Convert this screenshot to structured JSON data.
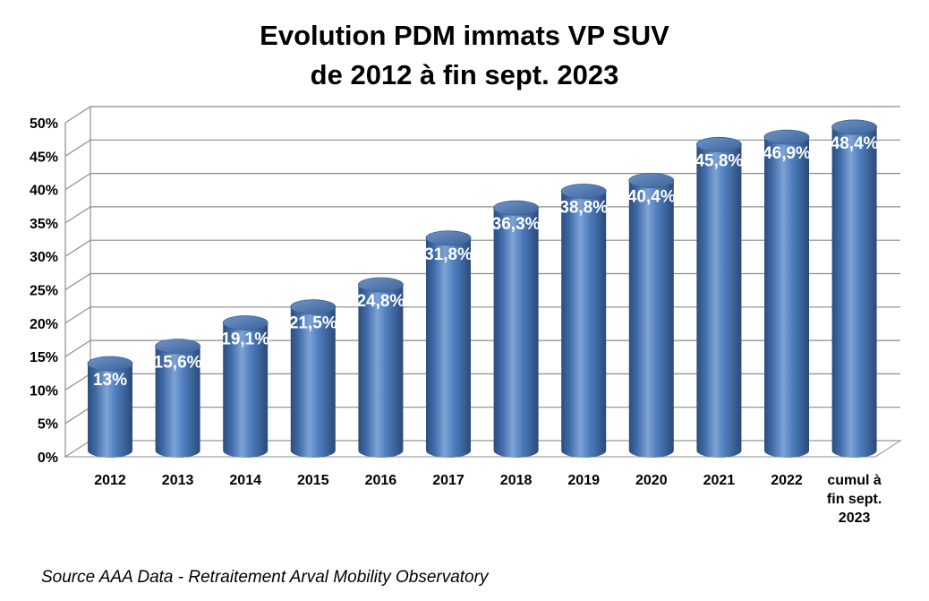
{
  "chart_data": {
    "type": "bar",
    "title_lines": [
      "Evolution PDM immats VP SUV",
      "de 2012 à fin sept. 2023"
    ],
    "categories": [
      [
        "2012"
      ],
      [
        "2013"
      ],
      [
        "2014"
      ],
      [
        "2015"
      ],
      [
        "2016"
      ],
      [
        "2017"
      ],
      [
        "2018"
      ],
      [
        "2019"
      ],
      [
        "2020"
      ],
      [
        "2021"
      ],
      [
        "2022"
      ],
      [
        "cumul à",
        "fin sept.",
        "2023"
      ]
    ],
    "values": [
      13,
      15.6,
      19.1,
      21.5,
      24.8,
      31.8,
      36.3,
      38.8,
      40.4,
      45.8,
      46.9,
      48.4
    ],
    "data_labels": [
      "13%",
      "15,6%",
      "19,1%",
      "21,5%",
      "24,8%",
      "31,8%",
      "36,3%",
      "38,8%",
      "40,4%",
      "45,8%",
      "46,9%",
      "48,4%"
    ],
    "yticks": [
      "0%",
      "5%",
      "10%",
      "15%",
      "20%",
      "25%",
      "30%",
      "35%",
      "40%",
      "45%",
      "50%"
    ],
    "ylim": [
      0,
      50
    ],
    "xlabel": "",
    "ylabel": "",
    "grid": true,
    "legend": "none",
    "bar_style": "3d-cylinder",
    "bar_color": "#4f81bd"
  },
  "source_note": "Source AAA Data - Retraitement Arval Mobility Observatory"
}
